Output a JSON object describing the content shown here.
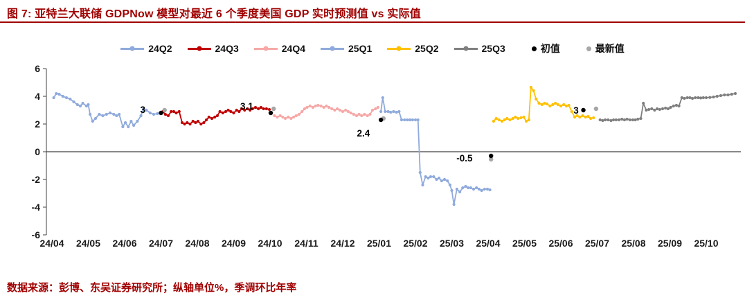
{
  "header": {
    "title": "图 7:  亚特兰大联储 GDPNow 模型对最近 6 个季度美国 GDP 实时预测值 vs 实际值"
  },
  "footer": {
    "source": "数据来源：彭博、东吴证券研究所；纵轴单位%，季调环比年率"
  },
  "colors": {
    "accent_maroon": "#A00000",
    "axis": "#404040",
    "tick_text": "#1a1a1a"
  },
  "chart_data": {
    "type": "line",
    "title": "亚特兰大联储GDPNow模型对最近6个季度美国GDP实时预测值 vs 实际值",
    "ylabel": "%（季调环比年率）",
    "y_axis": {
      "min": -6,
      "max": 6,
      "ticks": [
        6,
        4,
        2,
        0,
        -2,
        -4,
        -6
      ],
      "unit": "%"
    },
    "x_axis": {
      "labels": [
        "24/04",
        "24/05",
        "24/06",
        "24/07",
        "24/08",
        "24/09",
        "24/10",
        "24/11",
        "24/12",
        "25/01",
        "25/02",
        "25/03",
        "25/04",
        "25/05",
        "25/06",
        "25/07",
        "25/08",
        "25/09",
        "25/10"
      ]
    },
    "legend": [
      {
        "name": "24Q2",
        "color": "#8FAADC",
        "marker": "line"
      },
      {
        "name": "24Q3",
        "color": "#C00000",
        "marker": "line"
      },
      {
        "name": "24Q4",
        "color": "#F6A8A6",
        "marker": "line"
      },
      {
        "name": "25Q1",
        "color": "#8FAADC",
        "marker": "line"
      },
      {
        "name": "25Q2",
        "color": "#FFC000",
        "marker": "line"
      },
      {
        "name": "25Q3",
        "color": "#7F7F7F",
        "marker": "line"
      },
      {
        "name": "初值",
        "color": "#000000",
        "marker": "dot"
      },
      {
        "name": "最新值",
        "color": "#A6A6A6",
        "marker": "dot"
      }
    ],
    "marker_colors": {
      "initial": "#000000",
      "latest": "#A6A6A6"
    },
    "series": [
      {
        "name": "24Q2",
        "color": "#8FAADC",
        "points": [
          [
            0.05,
            3.9
          ],
          [
            0.12,
            4.2
          ],
          [
            0.2,
            4.15
          ],
          [
            0.3,
            4.0
          ],
          [
            0.4,
            3.9
          ],
          [
            0.5,
            3.8
          ],
          [
            0.6,
            3.6
          ],
          [
            0.7,
            3.4
          ],
          [
            0.78,
            3.3
          ],
          [
            0.85,
            3.5
          ],
          [
            0.95,
            3.3
          ],
          [
            1.0,
            3.4
          ],
          [
            1.05,
            2.7
          ],
          [
            1.12,
            2.2
          ],
          [
            1.2,
            2.4
          ],
          [
            1.3,
            2.7
          ],
          [
            1.4,
            2.6
          ],
          [
            1.5,
            2.7
          ],
          [
            1.6,
            2.8
          ],
          [
            1.7,
            2.7
          ],
          [
            1.78,
            2.6
          ],
          [
            1.85,
            2.7
          ],
          [
            1.95,
            1.8
          ],
          [
            2.02,
            2.1
          ],
          [
            2.1,
            1.8
          ],
          [
            2.18,
            2.2
          ],
          [
            2.25,
            1.9
          ],
          [
            2.35,
            2.2
          ],
          [
            2.45,
            2.6
          ],
          [
            2.52,
            3.1
          ],
          [
            2.6,
            3.0
          ],
          [
            2.7,
            2.8
          ],
          [
            2.8,
            2.7
          ],
          [
            2.9,
            2.75
          ],
          [
            3.0,
            2.8
          ]
        ]
      },
      {
        "name": "24Q3",
        "color": "#C00000",
        "points": [
          [
            3.05,
            2.9
          ],
          [
            3.12,
            2.7
          ],
          [
            3.2,
            2.6
          ],
          [
            3.28,
            2.9
          ],
          [
            3.35,
            2.9
          ],
          [
            3.42,
            2.8
          ],
          [
            3.5,
            2.9
          ],
          [
            3.58,
            2.1
          ],
          [
            3.65,
            2.0
          ],
          [
            3.72,
            2.1
          ],
          [
            3.8,
            2.0
          ],
          [
            3.88,
            2.2
          ],
          [
            3.95,
            2.1
          ],
          [
            4.02,
            2.2
          ],
          [
            4.1,
            2.0
          ],
          [
            4.18,
            2.1
          ],
          [
            4.25,
            2.3
          ],
          [
            4.32,
            2.5
          ],
          [
            4.4,
            2.4
          ],
          [
            4.48,
            2.5
          ],
          [
            4.55,
            2.6
          ],
          [
            4.62,
            2.9
          ],
          [
            4.7,
            2.8
          ],
          [
            4.78,
            2.9
          ],
          [
            4.85,
            3.0
          ],
          [
            4.92,
            2.9
          ],
          [
            5.0,
            2.8
          ],
          [
            5.08,
            3.0
          ],
          [
            5.15,
            2.9
          ],
          [
            5.22,
            3.1
          ],
          [
            5.3,
            3.0
          ],
          [
            5.38,
            3.1
          ],
          [
            5.45,
            3.0
          ],
          [
            5.52,
            3.1
          ],
          [
            5.6,
            3.2
          ],
          [
            5.68,
            3.1
          ],
          [
            5.75,
            3.2
          ],
          [
            5.82,
            3.1
          ],
          [
            5.9,
            3.1
          ],
          [
            5.98,
            3.05
          ]
        ]
      },
      {
        "name": "24Q4",
        "color": "#F6A8A6",
        "points": [
          [
            6.12,
            2.6
          ],
          [
            6.2,
            2.5
          ],
          [
            6.28,
            2.6
          ],
          [
            6.35,
            2.5
          ],
          [
            6.42,
            2.4
          ],
          [
            6.5,
            2.5
          ],
          [
            6.58,
            2.4
          ],
          [
            6.65,
            2.5
          ],
          [
            6.72,
            2.6
          ],
          [
            6.8,
            2.7
          ],
          [
            6.88,
            2.9
          ],
          [
            6.95,
            3.1
          ],
          [
            7.02,
            3.2
          ],
          [
            7.1,
            3.3
          ],
          [
            7.18,
            3.2
          ],
          [
            7.25,
            3.3
          ],
          [
            7.32,
            3.35
          ],
          [
            7.4,
            3.3
          ],
          [
            7.48,
            3.2
          ],
          [
            7.55,
            3.3
          ],
          [
            7.62,
            3.2
          ],
          [
            7.7,
            3.1
          ],
          [
            7.78,
            3.0
          ],
          [
            7.85,
            3.1
          ],
          [
            7.92,
            3.0
          ],
          [
            8.0,
            2.9
          ],
          [
            8.08,
            3.0
          ],
          [
            8.15,
            2.9
          ],
          [
            8.22,
            2.8
          ],
          [
            8.3,
            2.7
          ],
          [
            8.38,
            2.6
          ],
          [
            8.45,
            2.7
          ],
          [
            8.52,
            2.6
          ],
          [
            8.6,
            2.7
          ],
          [
            8.68,
            2.6
          ],
          [
            8.75,
            2.7
          ],
          [
            8.82,
            3.0
          ],
          [
            8.9,
            3.1
          ],
          [
            8.97,
            3.2
          ]
        ]
      },
      {
        "name": "25Q1",
        "color": "#8FAADC",
        "points": [
          [
            9.05,
            2.9
          ],
          [
            9.1,
            3.9
          ],
          [
            9.17,
            2.9
          ],
          [
            9.25,
            2.9
          ],
          [
            9.32,
            2.85
          ],
          [
            9.4,
            2.9
          ],
          [
            9.48,
            2.85
          ],
          [
            9.55,
            2.9
          ],
          [
            9.62,
            2.3
          ],
          [
            9.7,
            2.3
          ],
          [
            9.78,
            2.3
          ],
          [
            9.85,
            2.3
          ],
          [
            9.92,
            2.3
          ],
          [
            10.0,
            2.3
          ],
          [
            10.07,
            2.3
          ],
          [
            10.13,
            -1.5
          ],
          [
            10.2,
            -2.4
          ],
          [
            10.28,
            -1.8
          ],
          [
            10.35,
            -1.9
          ],
          [
            10.42,
            -1.8
          ],
          [
            10.5,
            -1.8
          ],
          [
            10.58,
            -2.0
          ],
          [
            10.65,
            -1.9
          ],
          [
            10.72,
            -2.1
          ],
          [
            10.8,
            -2.0
          ],
          [
            10.88,
            -2.1
          ],
          [
            10.95,
            -2.4
          ],
          [
            11.0,
            -2.8
          ],
          [
            11.06,
            -3.8
          ],
          [
            11.14,
            -2.7
          ],
          [
            11.22,
            -2.9
          ],
          [
            11.3,
            -2.6
          ],
          [
            11.38,
            -2.5
          ],
          [
            11.45,
            -2.6
          ],
          [
            11.52,
            -2.6
          ],
          [
            11.6,
            -2.7
          ],
          [
            11.68,
            -2.6
          ],
          [
            11.75,
            -2.7
          ],
          [
            11.82,
            -2.8
          ],
          [
            11.9,
            -2.7
          ],
          [
            11.98,
            -2.7
          ],
          [
            12.05,
            -2.75
          ]
        ]
      },
      {
        "name": "25Q2",
        "color": "#FFC000",
        "points": [
          [
            12.15,
            2.2
          ],
          [
            12.22,
            2.4
          ],
          [
            12.3,
            2.3
          ],
          [
            12.38,
            2.2
          ],
          [
            12.45,
            2.3
          ],
          [
            12.52,
            2.4
          ],
          [
            12.6,
            2.3
          ],
          [
            12.68,
            2.4
          ],
          [
            12.75,
            2.5
          ],
          [
            12.82,
            2.4
          ],
          [
            12.9,
            2.45
          ],
          [
            12.98,
            2.5
          ],
          [
            13.05,
            2.2
          ],
          [
            13.12,
            2.3
          ],
          [
            13.18,
            4.65
          ],
          [
            13.25,
            4.4
          ],
          [
            13.32,
            3.8
          ],
          [
            13.4,
            3.5
          ],
          [
            13.48,
            3.4
          ],
          [
            13.55,
            3.5
          ],
          [
            13.62,
            3.45
          ],
          [
            13.7,
            3.3
          ],
          [
            13.78,
            3.4
          ],
          [
            13.85,
            3.5
          ],
          [
            13.92,
            3.4
          ],
          [
            14.0,
            3.3
          ],
          [
            14.08,
            3.4
          ],
          [
            14.15,
            3.3
          ],
          [
            14.22,
            3.35
          ],
          [
            14.3,
            2.9
          ],
          [
            14.38,
            2.5
          ],
          [
            14.45,
            2.6
          ],
          [
            14.52,
            2.5
          ],
          [
            14.6,
            2.6
          ],
          [
            14.68,
            2.5
          ],
          [
            14.75,
            2.55
          ],
          [
            14.82,
            2.4
          ],
          [
            14.9,
            2.45
          ]
        ]
      },
      {
        "name": "25Q3",
        "color": "#7F7F7F",
        "points": [
          [
            15.08,
            2.3
          ],
          [
            15.15,
            2.25
          ],
          [
            15.22,
            2.3
          ],
          [
            15.3,
            2.3
          ],
          [
            15.38,
            2.25
          ],
          [
            15.45,
            2.3
          ],
          [
            15.52,
            2.3
          ],
          [
            15.6,
            2.3
          ],
          [
            15.68,
            2.35
          ],
          [
            15.75,
            2.3
          ],
          [
            15.82,
            2.35
          ],
          [
            15.9,
            2.3
          ],
          [
            15.98,
            2.3
          ],
          [
            16.05,
            2.3
          ],
          [
            16.12,
            2.35
          ],
          [
            16.2,
            2.4
          ],
          [
            16.27,
            3.5
          ],
          [
            16.35,
            3.0
          ],
          [
            16.42,
            3.05
          ],
          [
            16.5,
            3.1
          ],
          [
            16.58,
            3.0
          ],
          [
            16.65,
            3.1
          ],
          [
            16.72,
            3.05
          ],
          [
            16.8,
            3.1
          ],
          [
            16.88,
            3.15
          ],
          [
            16.95,
            3.1
          ],
          [
            17.02,
            3.2
          ],
          [
            17.1,
            3.3
          ],
          [
            17.18,
            3.35
          ],
          [
            17.25,
            3.3
          ],
          [
            17.33,
            3.9
          ],
          [
            17.4,
            3.85
          ],
          [
            17.48,
            3.9
          ],
          [
            17.55,
            3.9
          ],
          [
            17.62,
            3.85
          ],
          [
            17.7,
            3.9
          ],
          [
            17.78,
            3.9
          ],
          [
            17.85,
            3.88
          ],
          [
            17.92,
            3.9
          ],
          [
            18.0,
            3.9
          ],
          [
            18.1,
            3.92
          ],
          [
            18.2,
            3.95
          ],
          [
            18.3,
            4.0
          ],
          [
            18.4,
            4.05
          ],
          [
            18.5,
            4.1
          ],
          [
            18.6,
            4.1
          ],
          [
            18.7,
            4.15
          ],
          [
            18.8,
            4.2
          ]
        ]
      }
    ],
    "markers": [
      {
        "quarter": "24Q2",
        "initial": {
          "x": 3.0,
          "y": 2.8
        },
        "latest": {
          "x": 3.1,
          "y": 3.0
        },
        "label": {
          "text": "3",
          "x": 2.5,
          "y": 3.05,
          "anchor": "middle"
        }
      },
      {
        "quarter": "24Q3",
        "initial": {
          "x": 6.02,
          "y": 2.8
        },
        "latest": {
          "x": 6.1,
          "y": 3.1
        },
        "label": {
          "text": "3.1",
          "x": 5.36,
          "y": 3.3,
          "anchor": "middle"
        }
      },
      {
        "quarter": "24Q4",
        "initial": {
          "x": 9.05,
          "y": 2.3
        },
        "latest": {
          "x": 9.12,
          "y": 2.4
        },
        "label": {
          "text": "2.4",
          "x": 8.57,
          "y": 1.35,
          "anchor": "middle"
        }
      },
      {
        "quarter": "25Q1",
        "initial": {
          "x": 12.08,
          "y": -0.3
        },
        "latest": {
          "x": 12.08,
          "y": -0.55
        },
        "label": {
          "text": "-0.5",
          "x": 11.35,
          "y": -0.45,
          "anchor": "middle"
        }
      },
      {
        "quarter": "25Q2",
        "initial": {
          "x": 14.62,
          "y": 3.0
        },
        "latest": {
          "x": 14.97,
          "y": 3.1
        },
        "label": {
          "text": "3",
          "x": 14.42,
          "y": 3.0,
          "anchor": "middle"
        }
      }
    ]
  }
}
